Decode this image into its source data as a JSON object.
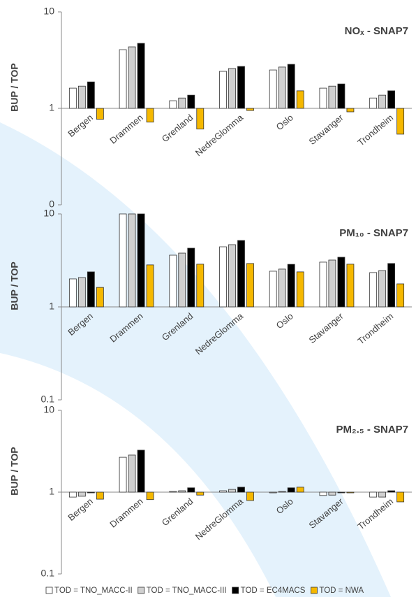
{
  "chart_data": [
    {
      "type": "bar",
      "title": "NOₓ - SNAP7",
      "y_label": "BUP / TOP",
      "log_y": true,
      "categories": [
        "Bergen",
        "Drammen",
        "Grenland",
        "NedreGlomma",
        "Oslo",
        "Stavanger",
        "Trondheim"
      ],
      "series": [
        {
          "name": "TOD = TNO_MACC-II",
          "color": "#ffffff",
          "values": [
            1.62,
            4.06,
            1.2,
            2.42,
            2.5,
            1.62,
            1.28
          ]
        },
        {
          "name": "TOD = TNO_MACC-III",
          "color": "#d0d0d0",
          "values": [
            1.7,
            4.34,
            1.28,
            2.59,
            2.68,
            1.7,
            1.37
          ]
        },
        {
          "name": "TOD = EC4MACS",
          "color": "#000000",
          "values": [
            1.88,
            4.72,
            1.37,
            2.72,
            2.86,
            1.79,
            1.52
          ]
        },
        {
          "name": "TOD = NWA",
          "color": "#f5b800",
          "values": [
            0.77,
            0.72,
            0.61,
            0.95,
            1.52,
            0.92,
            0.54
          ]
        }
      ],
      "ylim": [
        0.1,
        10
      ],
      "yticks": [
        {
          "value": 0.1,
          "label": "0"
        },
        1,
        10
      ]
    },
    {
      "type": "bar",
      "title": "PM₁₀ - SNAP7",
      "y_label": "BUP / TOP",
      "log_y": true,
      "categories": [
        "Bergen",
        "Drammen",
        "Grenland",
        "NedreGlomma",
        "Oslo",
        "Stavanger",
        "Trondheim"
      ],
      "series": [
        {
          "color": "#ffffff",
          "values": [
            2.0,
            10,
            3.6,
            4.43,
            2.42,
            3.03,
            2.34
          ]
        },
        {
          "color": "#d0d0d0",
          "values": [
            2.07,
            10,
            3.79,
            4.67,
            2.55,
            3.19,
            2.46
          ]
        },
        {
          "color": "#000000",
          "values": [
            2.38,
            10,
            4.28,
            5.18,
            2.87,
            3.42,
            2.93
          ]
        },
        {
          "color": "#f5b800",
          "values": [
            1.62,
            2.83,
            2.88,
            2.93,
            2.38,
            2.88,
            1.77
          ]
        }
      ],
      "ylim": [
        0.1,
        10
      ],
      "yticks": [
        0.1,
        1,
        10
      ]
    },
    {
      "type": "bar",
      "title": "PM₂.₅ - SNAP7",
      "y_label": "BUP / TOP",
      "log_y": true,
      "categories": [
        "Bergen",
        "Drammen",
        "Grenland",
        "NedreGlomma",
        "Oslo",
        "Stavanger",
        "Trondheim"
      ],
      "series": [
        {
          "color": "#ffffff",
          "values": [
            0.87,
            2.67,
            1.02,
            1.04,
            0.98,
            0.91,
            0.87
          ]
        },
        {
          "color": "#d0d0d0",
          "values": [
            0.89,
            2.84,
            1.04,
            1.08,
            1.02,
            0.92,
            0.87
          ]
        },
        {
          "color": "#000000",
          "values": [
            0.98,
            3.26,
            1.13,
            1.15,
            1.13,
            0.98,
            1.04
          ]
        },
        {
          "color": "#f5b800",
          "values": [
            0.82,
            0.81,
            0.92,
            0.79,
            1.15,
            0.98,
            0.76
          ]
        }
      ],
      "ylim": [
        0.1,
        10
      ],
      "yticks": [
        0.1,
        1,
        10
      ]
    }
  ]
}
